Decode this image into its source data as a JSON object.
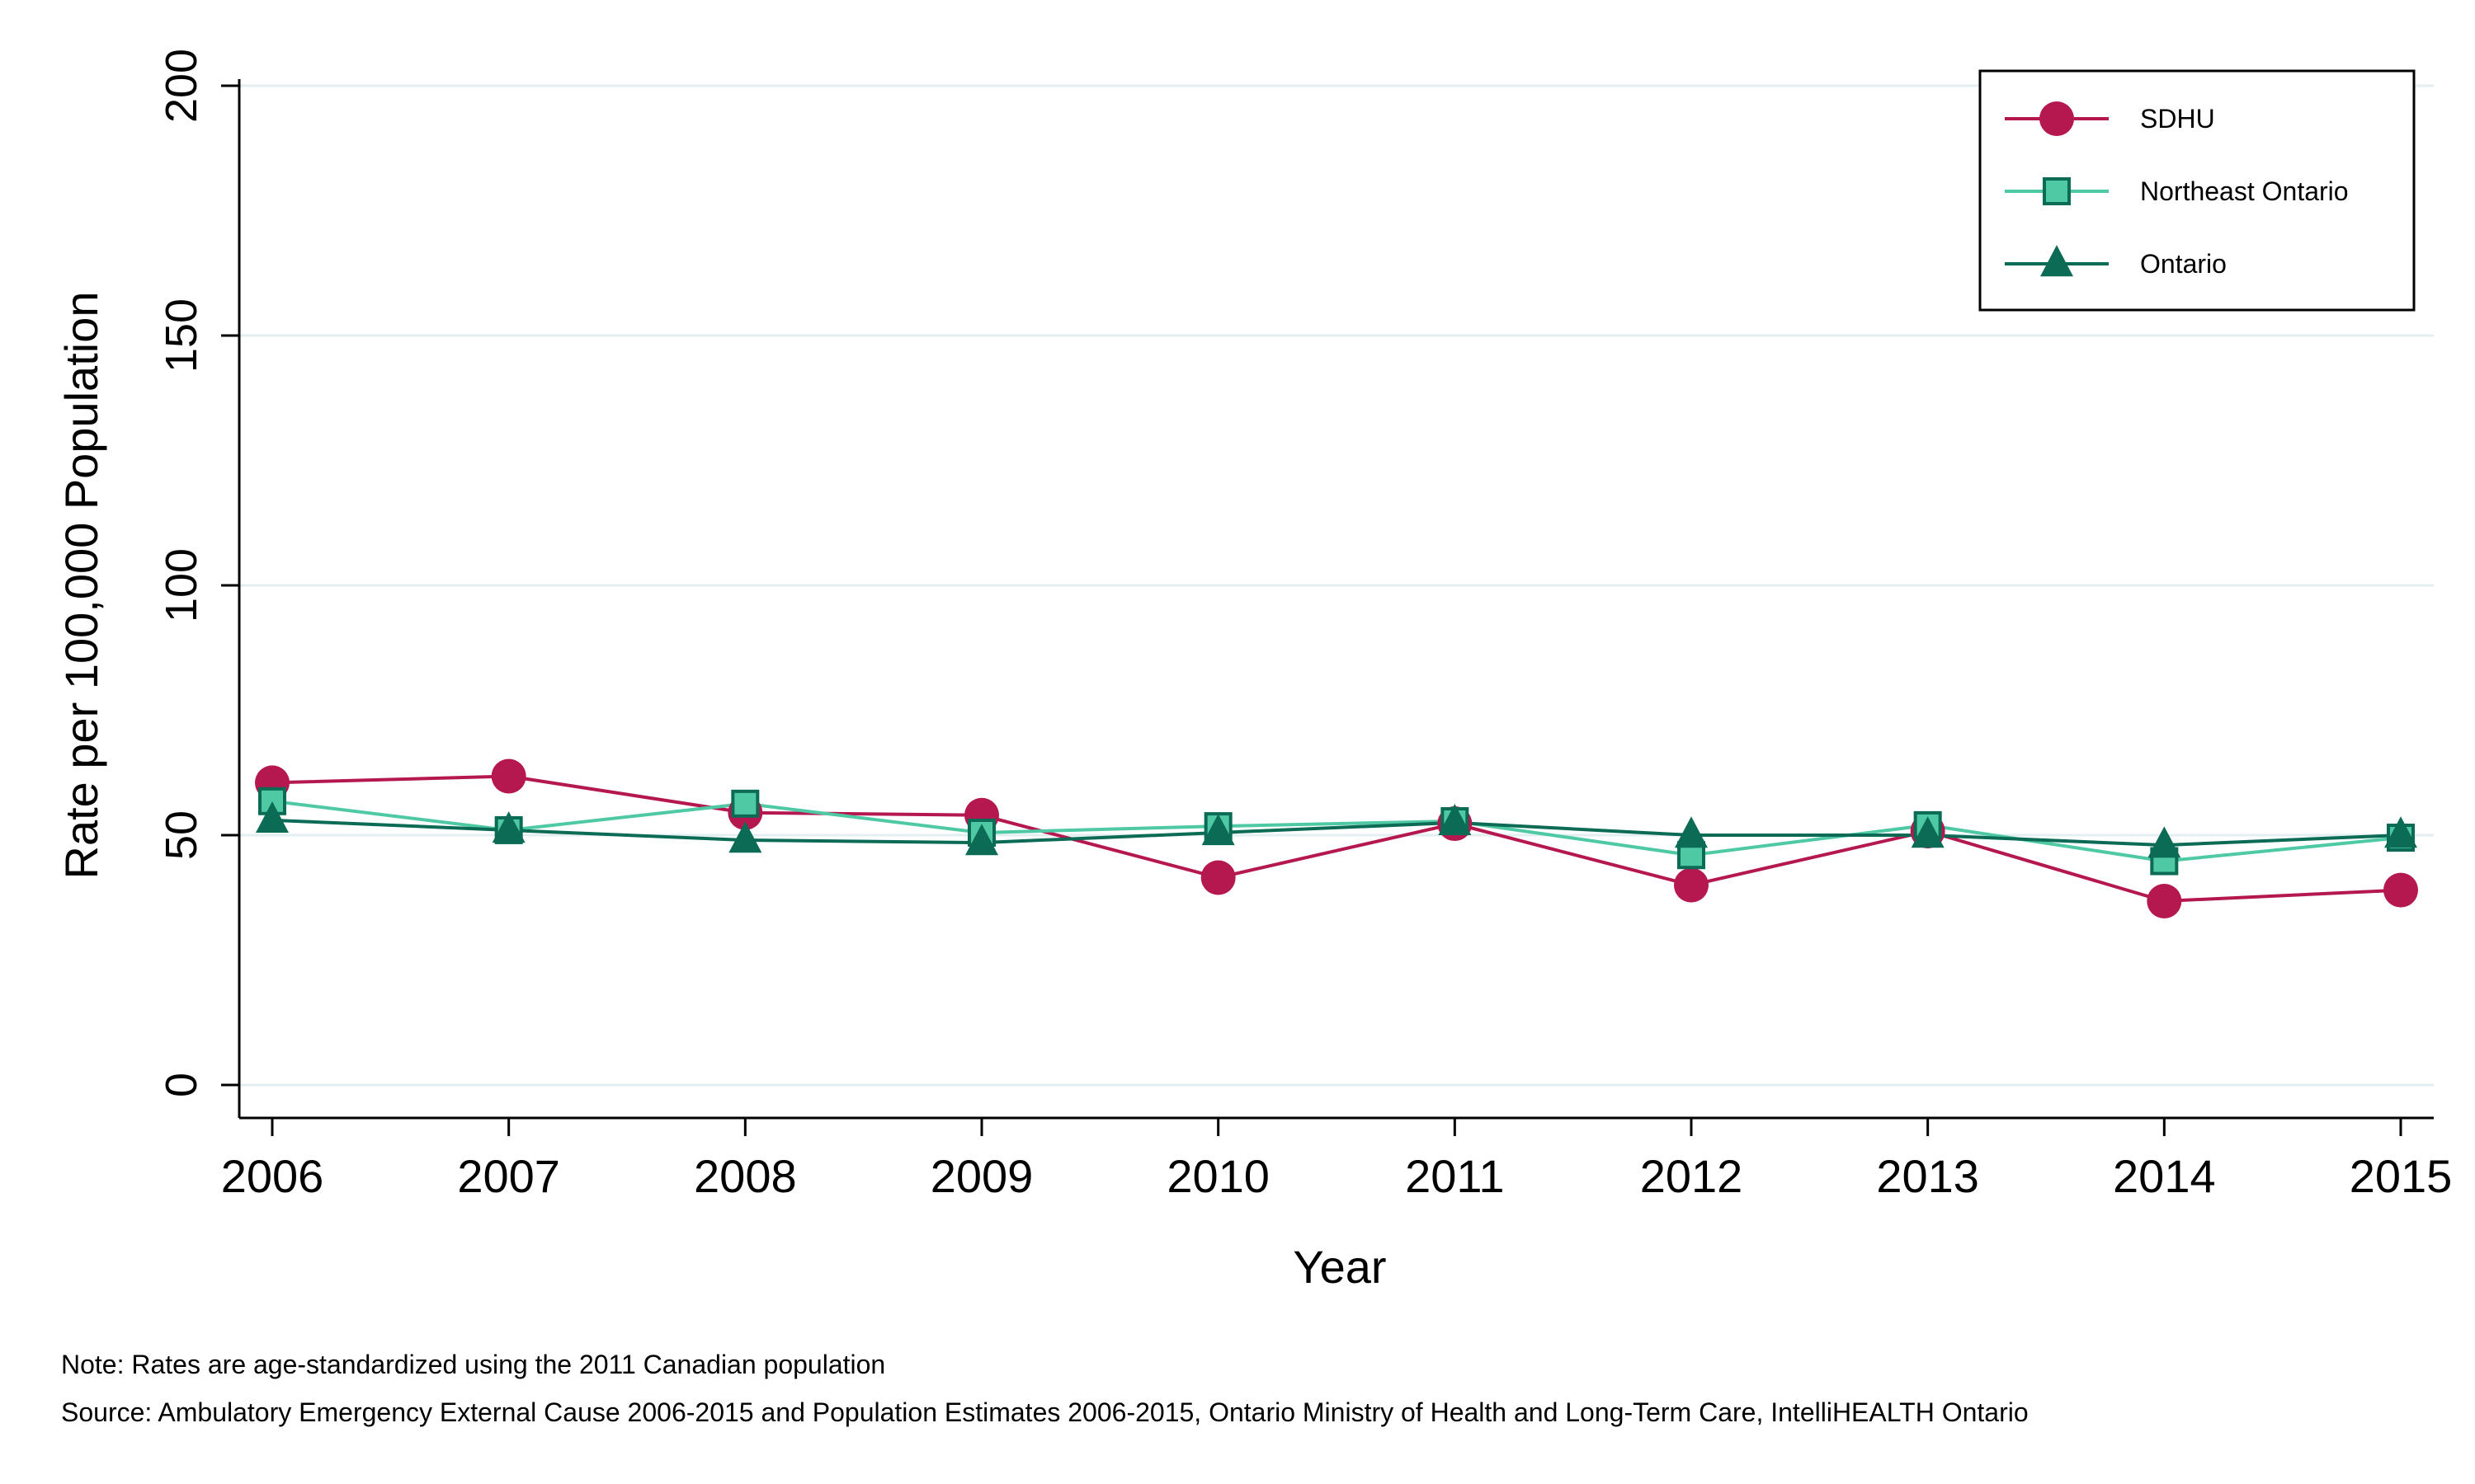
{
  "chart_data": {
    "type": "line",
    "xlabel": "Year",
    "ylabel": "Rate per 100,000 Population",
    "x": [
      2006,
      2007,
      2008,
      2009,
      2010,
      2011,
      2012,
      2013,
      2014,
      2015
    ],
    "ylim": [
      0,
      200
    ],
    "yticks": [
      0,
      50,
      100,
      150,
      200
    ],
    "grid": true,
    "legend_position": "top-right",
    "series": [
      {
        "name": "SDHU",
        "color": "#b5174f",
        "marker": "circle",
        "values": [
          60.5,
          61.8,
          54.5,
          54.0,
          41.5,
          52.3,
          40.0,
          50.8,
          36.8,
          39.0
        ]
      },
      {
        "name": "Northeast Ontario",
        "color": "#4ec9a4",
        "marker": "square",
        "values": [
          56.8,
          51.0,
          56.3,
          50.5,
          51.8,
          52.8,
          46.0,
          52.0,
          44.8,
          49.5
        ]
      },
      {
        "name": "Ontario",
        "color": "#0b6b55",
        "marker": "triangle",
        "values": [
          53.0,
          51.0,
          49.0,
          48.5,
          50.5,
          52.5,
          50.0,
          50.0,
          48.0,
          50.0
        ]
      }
    ]
  },
  "notes": {
    "note": "Note: Rates are age-standardized using the 2011 Canadian population",
    "source": "Source: Ambulatory Emergency External Cause 2006-2015 and Population Estimates 2006-2015, Ontario Ministry of Health and Long-Term Care, IntelliHEALTH Ontario"
  }
}
